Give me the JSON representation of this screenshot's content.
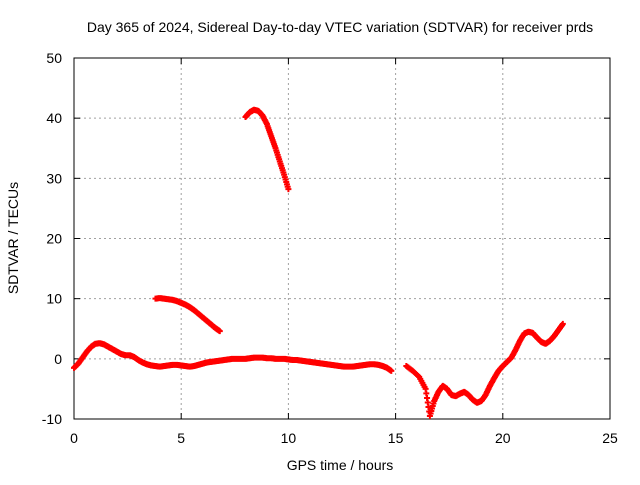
{
  "chart_data": {
    "type": "scatter",
    "title": "Day 365 of 2024, Sidereal Day-to-day VTEC variation (SDTVAR) for receiver prds",
    "xlabel": "GPS time / hours",
    "ylabel": "SDTVAR / TECUs",
    "xlim": [
      0,
      25
    ],
    "ylim": [
      -10,
      50
    ],
    "xticks": [
      0,
      5,
      10,
      15,
      20,
      25
    ],
    "yticks": [
      -10,
      0,
      10,
      20,
      30,
      40,
      50
    ],
    "xtick_labels": [
      "0",
      "5",
      "10",
      "15",
      "20",
      "25"
    ],
    "ytick_labels": [
      "-10",
      "0",
      "10",
      "20",
      "30",
      "40",
      "50"
    ],
    "grid": true,
    "marker": "+",
    "series_color": "#ff0000",
    "series": [
      {
        "name": "main-trace",
        "x": [
          0.0,
          0.2,
          0.4,
          0.6,
          0.8,
          1.0,
          1.2,
          1.4,
          1.6,
          1.8,
          2.0,
          2.2,
          2.4,
          2.6,
          2.8,
          3.0,
          3.2,
          3.4,
          3.6,
          3.8,
          4.0,
          4.2,
          4.4,
          4.6,
          4.8,
          5.0,
          5.2,
          5.4,
          5.6,
          5.8,
          6.0,
          6.2,
          6.4,
          6.6,
          6.8,
          7.0,
          7.2,
          7.4,
          7.6,
          7.8,
          8.0,
          8.2,
          8.4,
          8.6,
          8.8,
          9.0,
          9.2,
          9.4,
          9.6,
          9.8,
          10.0,
          10.2,
          10.4,
          10.6,
          10.8,
          11.0,
          11.2,
          11.4,
          11.6,
          11.8,
          12.0,
          12.2,
          12.4,
          12.6,
          12.8,
          13.0,
          13.2,
          13.4,
          13.6,
          13.8,
          14.0,
          14.2,
          14.4,
          14.6,
          14.8
        ],
        "y": [
          -1.5,
          -0.8,
          0.2,
          1.2,
          2.0,
          2.5,
          2.6,
          2.4,
          2.0,
          1.6,
          1.2,
          0.8,
          0.6,
          0.6,
          0.3,
          -0.2,
          -0.6,
          -0.9,
          -1.1,
          -1.2,
          -1.3,
          -1.2,
          -1.1,
          -1.0,
          -1.0,
          -1.1,
          -1.2,
          -1.3,
          -1.2,
          -1.0,
          -0.8,
          -0.6,
          -0.5,
          -0.4,
          -0.3,
          -0.2,
          -0.1,
          0.0,
          0.0,
          0.0,
          0.0,
          0.1,
          0.2,
          0.2,
          0.2,
          0.1,
          0.1,
          0.0,
          0.0,
          0.0,
          -0.1,
          -0.2,
          -0.2,
          -0.3,
          -0.4,
          -0.5,
          -0.6,
          -0.7,
          -0.8,
          -0.9,
          -1.0,
          -1.1,
          -1.2,
          -1.3,
          -1.3,
          -1.3,
          -1.2,
          -1.1,
          -1.0,
          -0.9,
          -0.9,
          -1.0,
          -1.2,
          -1.5,
          -2.0
        ]
      },
      {
        "name": "mid-segment",
        "x": [
          3.8,
          4.0,
          4.2,
          4.4,
          4.6,
          4.8,
          5.0,
          5.2,
          5.4,
          5.6,
          5.8,
          6.0,
          6.2,
          6.4,
          6.6,
          6.8
        ],
        "y": [
          10.0,
          10.1,
          10.0,
          9.9,
          9.8,
          9.6,
          9.3,
          9.0,
          8.6,
          8.1,
          7.5,
          6.9,
          6.3,
          5.7,
          5.1,
          4.6
        ]
      },
      {
        "name": "peak-segment",
        "x": [
          8.0,
          8.2,
          8.4,
          8.6,
          8.8,
          9.0,
          9.2,
          9.4,
          9.6,
          9.8,
          10.0
        ],
        "y": [
          40.2,
          41.0,
          41.4,
          41.2,
          40.4,
          39.0,
          37.0,
          35.0,
          32.8,
          30.6,
          28.2
        ]
      },
      {
        "name": "late-segment",
        "x": [
          15.5,
          15.8,
          16.1,
          16.4,
          16.6,
          16.8,
          17.0,
          17.2,
          17.4,
          17.6,
          17.8,
          18.0,
          18.2,
          18.4,
          18.6,
          18.8,
          19.0,
          19.2,
          19.4,
          19.6,
          19.8,
          20.0,
          20.2,
          20.4,
          20.6,
          20.8,
          21.0,
          21.2,
          21.4,
          21.6,
          21.8,
          22.0,
          22.2,
          22.4,
          22.6,
          22.8
        ],
        "y": [
          -1.2,
          -2.0,
          -3.0,
          -5.0,
          -9.5,
          -7.0,
          -5.5,
          -4.5,
          -5.0,
          -6.0,
          -6.2,
          -5.8,
          -5.5,
          -6.0,
          -6.8,
          -7.3,
          -7.0,
          -6.0,
          -4.5,
          -3.2,
          -2.0,
          -1.2,
          -0.5,
          0.2,
          1.5,
          3.0,
          4.2,
          4.5,
          4.3,
          3.5,
          2.8,
          2.5,
          3.0,
          3.8,
          4.8,
          5.8
        ]
      }
    ]
  }
}
